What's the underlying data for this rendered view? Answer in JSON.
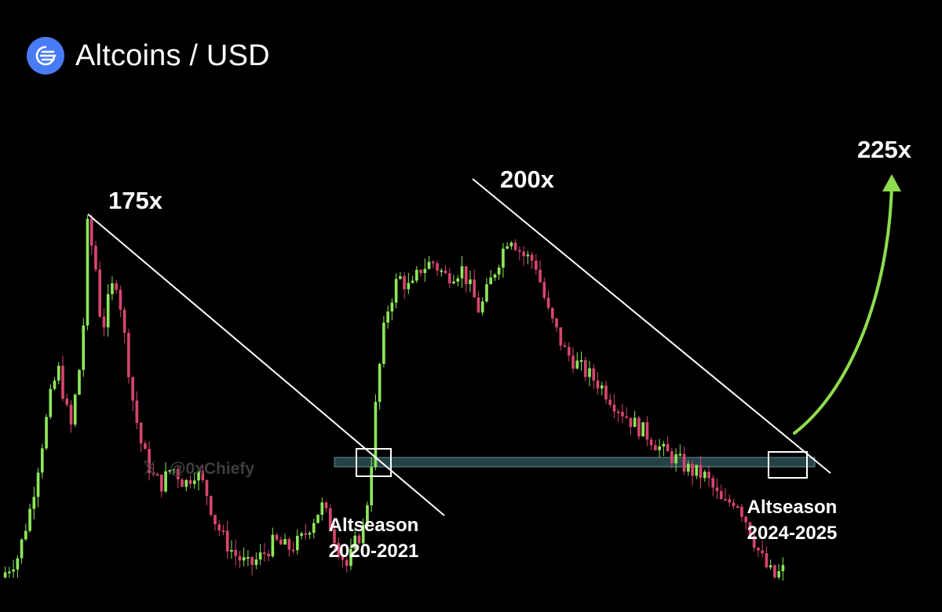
{
  "header": {
    "title": "Altcoins / USD",
    "icon": "altcoins-logo-icon"
  },
  "watermark": {
    "handle": "@0xChiefy",
    "icon": "x-logo-icon"
  },
  "colors": {
    "background": "#000000",
    "up_candle": "#8ee65a",
    "down_candle": "#d6456e",
    "trendline": "#ffffff",
    "support_band": "#2b4a4f",
    "arrow": "#8fdc4f",
    "logo": "#4a7bf7"
  },
  "chart_data": {
    "type": "candlestick",
    "title": "Altcoins / USD",
    "annotations": {
      "peak_2017": "175x",
      "peak_2021": "200x",
      "target": "225x",
      "cycle_2020": {
        "line1": "Altseason",
        "line2": "2020-2021"
      },
      "cycle_2024": {
        "line1": "Altseason",
        "line2": "2024-2025"
      }
    },
    "close_path": [
      [
        0.0,
        0.02
      ],
      [
        0.02,
        0.08
      ],
      [
        0.035,
        0.22
      ],
      [
        0.05,
        0.42
      ],
      [
        0.06,
        0.55
      ],
      [
        0.068,
        0.6
      ],
      [
        0.075,
        0.5
      ],
      [
        0.082,
        0.44
      ],
      [
        0.09,
        0.58
      ],
      [
        0.095,
        0.65
      ],
      [
        0.101,
        1.0
      ],
      [
        0.11,
        0.9
      ],
      [
        0.118,
        0.7
      ],
      [
        0.128,
        0.82
      ],
      [
        0.136,
        0.85
      ],
      [
        0.145,
        0.68
      ],
      [
        0.155,
        0.5
      ],
      [
        0.165,
        0.38
      ],
      [
        0.178,
        0.3
      ],
      [
        0.188,
        0.28
      ],
      [
        0.2,
        0.33
      ],
      [
        0.215,
        0.28
      ],
      [
        0.228,
        0.32
      ],
      [
        0.24,
        0.26
      ],
      [
        0.25,
        0.18
      ],
      [
        0.262,
        0.12
      ],
      [
        0.275,
        0.08
      ],
      [
        0.29,
        0.05
      ],
      [
        0.305,
        0.08
      ],
      [
        0.32,
        0.12
      ],
      [
        0.335,
        0.1
      ],
      [
        0.35,
        0.12
      ],
      [
        0.365,
        0.18
      ],
      [
        0.375,
        0.22
      ],
      [
        0.385,
        0.17
      ],
      [
        0.395,
        0.1
      ],
      [
        0.405,
        0.05
      ],
      [
        0.415,
        0.12
      ],
      [
        0.425,
        0.16
      ],
      [
        0.432,
        0.3
      ],
      [
        0.44,
        0.55
      ],
      [
        0.45,
        0.75
      ],
      [
        0.465,
        0.86
      ],
      [
        0.48,
        0.82
      ],
      [
        0.49,
        0.88
      ],
      [
        0.505,
        0.9
      ],
      [
        0.52,
        0.86
      ],
      [
        0.54,
        0.88
      ],
      [
        0.56,
        0.76
      ],
      [
        0.575,
        0.86
      ],
      [
        0.595,
        0.98
      ],
      [
        0.61,
        0.92
      ],
      [
        0.625,
        0.9
      ],
      [
        0.64,
        0.76
      ],
      [
        0.66,
        0.65
      ],
      [
        0.68,
        0.6
      ],
      [
        0.7,
        0.56
      ],
      [
        0.72,
        0.5
      ],
      [
        0.74,
        0.45
      ],
      [
        0.76,
        0.41
      ],
      [
        0.775,
        0.37
      ],
      [
        0.79,
        0.35
      ],
      [
        0.805,
        0.32
      ],
      [
        0.825,
        0.3
      ],
      [
        0.845,
        0.22
      ],
      [
        0.86,
        0.24
      ],
      [
        0.872,
        0.18
      ],
      [
        0.885,
        0.1
      ],
      [
        0.895,
        0.05
      ],
      [
        0.905,
        0.02
      ],
      [
        0.915,
        0.04
      ]
    ],
    "candle_count": 190
  }
}
